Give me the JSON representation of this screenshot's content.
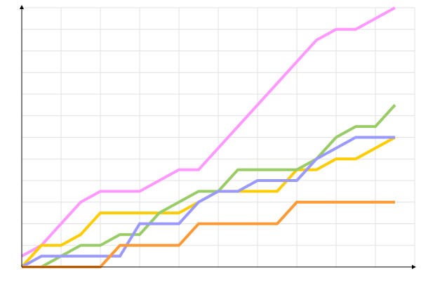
{
  "chart_data": {
    "type": "line",
    "x": [
      0,
      1,
      2,
      3,
      4,
      5,
      6,
      7,
      8,
      9,
      10,
      11,
      12,
      13,
      14,
      15,
      16,
      17,
      18,
      19
    ],
    "series": [
      {
        "color": "#ff99ff",
        "values": [
          0.5,
          1,
          2,
          3,
          3.5,
          3.5,
          3.5,
          4,
          4.5,
          4.5,
          5.5,
          6.5,
          7.5,
          8.5,
          9.5,
          10.5,
          11,
          11,
          11.5,
          12
        ]
      },
      {
        "color": "#ffcc00",
        "values": [
          0,
          1,
          1,
          1.5,
          2.5,
          2.5,
          2.5,
          2.5,
          2.5,
          3,
          3.5,
          3.5,
          3.5,
          3.5,
          4.5,
          4.5,
          5,
          5,
          5.5,
          6
        ]
      },
      {
        "color": "#99cc66",
        "values": [
          0,
          0,
          0.5,
          1,
          1,
          1.5,
          1.5,
          2.5,
          3,
          3.5,
          3.5,
          4.5,
          4.5,
          4.5,
          4.5,
          5,
          6,
          6.5,
          6.5,
          7.5
        ]
      },
      {
        "color": "#9999ff",
        "values": [
          0,
          0.5,
          0.5,
          0.5,
          0.5,
          0.5,
          2,
          2,
          2,
          3,
          3.5,
          3.5,
          4,
          4,
          4,
          5,
          5.5,
          6,
          6,
          6
        ]
      },
      {
        "color": "#ff9933",
        "values": [
          0,
          0,
          0,
          0,
          0,
          1,
          1,
          1,
          1,
          2,
          2,
          2,
          2,
          2,
          3,
          3,
          3,
          3,
          3,
          3
        ]
      }
    ],
    "xlim": [
      0,
      20
    ],
    "xticks": [
      0,
      2,
      4,
      6,
      8,
      10,
      12,
      14,
      16,
      18,
      20
    ],
    "ylim": [
      0,
      12
    ],
    "yticks": [
      0,
      1,
      2,
      3,
      4,
      5,
      6,
      7,
      8,
      9,
      10,
      11,
      12
    ],
    "grid": true
  }
}
